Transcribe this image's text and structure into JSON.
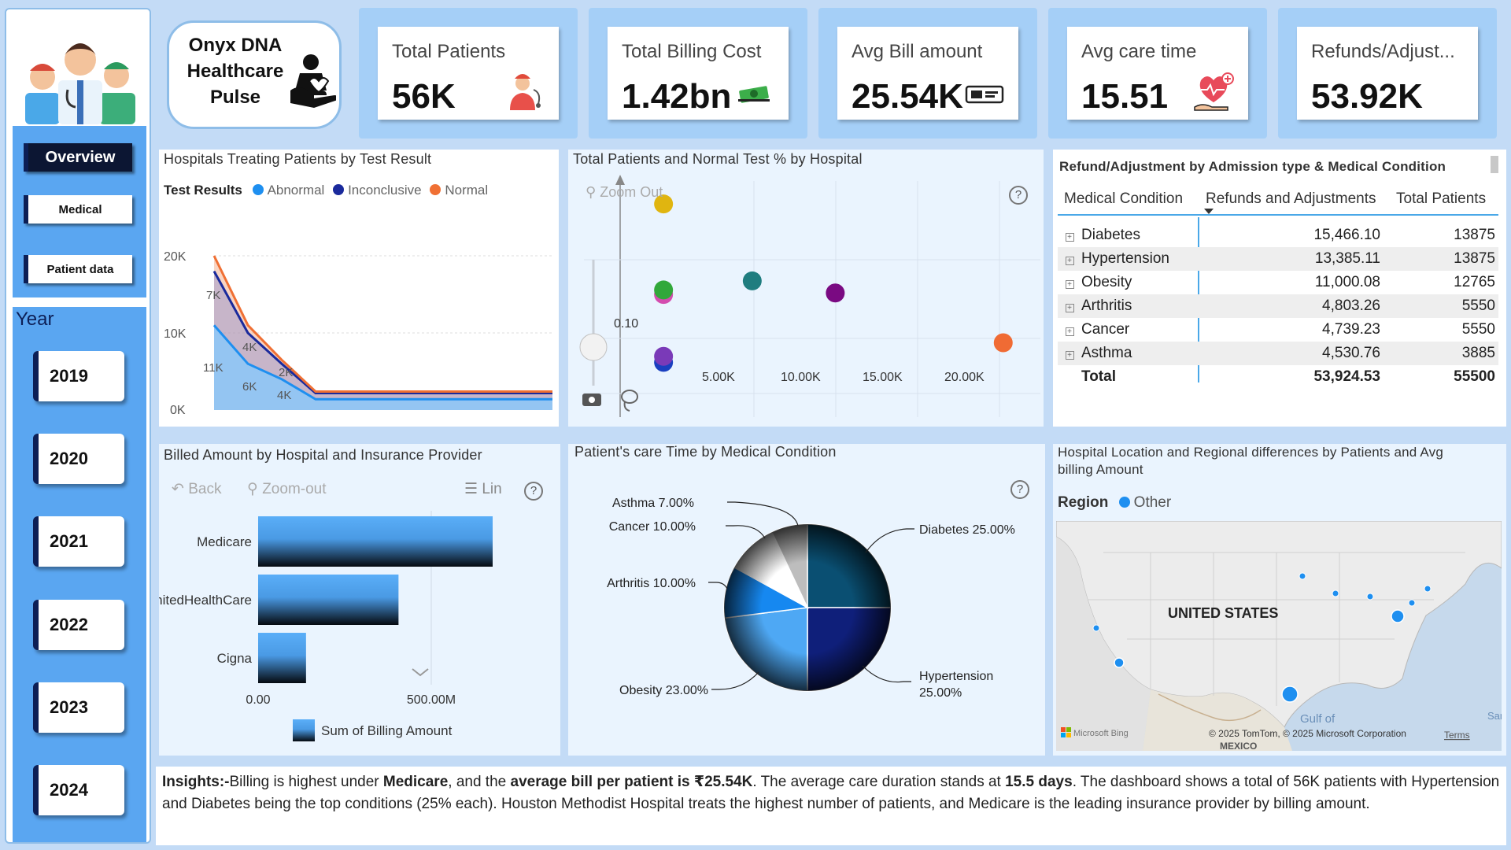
{
  "title": {
    "line1": "Onyx DNA",
    "line2": "Healthcare",
    "line3": "Pulse"
  },
  "nav": {
    "overview": "Overview",
    "medical": "Medical",
    "patient_data": "Patient data"
  },
  "year_filter": {
    "label": "Year",
    "years": [
      "2019",
      "2020",
      "2021",
      "2022",
      "2023",
      "2024"
    ]
  },
  "kpis": [
    {
      "label": "Total Patients",
      "value": "56K",
      "icon": "patient-icon"
    },
    {
      "label": "Total Billing Cost",
      "value": "1.42bn",
      "icon": "money-icon"
    },
    {
      "label": "Avg Bill amount",
      "value": "25.54K",
      "icon": "bill-icon"
    },
    {
      "label": "Avg care time",
      "value": "15.51",
      "icon": "heart-hand-icon"
    },
    {
      "label": "Refunds/Adjust...",
      "value": "53.92K",
      "icon": ""
    }
  ],
  "line_chart": {
    "title": "Hospitals Treating Patients by Test Result",
    "legend_title": "Test Results",
    "colors": {
      "Abnormal": "#1e8ff0",
      "Inconclusive": "#1a2a9c",
      "Normal": "#f07034"
    },
    "chart_data": {
      "type": "area",
      "title": "Hospitals Treating Patients by Test Result",
      "yticks": [
        "20K",
        "10K",
        "0K"
      ],
      "ylim": [
        0,
        20000
      ],
      "series": [
        {
          "name": "Abnormal",
          "values": [
            11000,
            6000,
            4000,
            1400,
            1400,
            1400,
            1400,
            1400,
            1400,
            1400,
            1400
          ]
        },
        {
          "name": "Inconclusive",
          "values": [
            18000,
            10000,
            6000,
            2200,
            2200,
            2200,
            2200,
            2200,
            2200,
            2200,
            2200
          ]
        },
        {
          "name": "Normal",
          "values": [
            20000,
            11000,
            6500,
            2400,
            2400,
            2400,
            2400,
            2400,
            2400,
            2400,
            2400
          ]
        }
      ],
      "data_labels": [
        "7K",
        "4K",
        "2K",
        "11K",
        "6K",
        "4K"
      ]
    }
  },
  "scatter_chart": {
    "title": "Total Patients and Normal Test % by Hospital",
    "zoom_out": "Zoom Out",
    "help": "?",
    "chart_data": {
      "type": "scatter",
      "title": "Total Patients and Normal Test % by Hospital",
      "xticks": [
        "5.00K",
        "10.00K",
        "15.00K",
        "20.00K"
      ],
      "ytick": "0.10",
      "points": [
        {
          "x": 2300,
          "y": 0.19,
          "color": "#e0b510"
        },
        {
          "x": 2300,
          "y": 0.13,
          "color": "#d44caf"
        },
        {
          "x": 2300,
          "y": 0.133,
          "color": "#31a83a"
        },
        {
          "x": 7000,
          "y": 0.139,
          "color": "#1f7d7f"
        },
        {
          "x": 11400,
          "y": 0.131,
          "color": "#7a0a82"
        },
        {
          "x": 2300,
          "y": 0.085,
          "color": "#1a3fc0"
        },
        {
          "x": 2300,
          "y": 0.089,
          "color": "#7a3ab8"
        },
        {
          "x": 20300,
          "y": 0.098,
          "color": "#f06b34"
        }
      ]
    }
  },
  "refund_table": {
    "title": "Refund/Adjustment by Admission type & Medical Condition",
    "columns": [
      "Medical Condition",
      "Refunds and Adjustments",
      "Total Patients"
    ],
    "rows": [
      {
        "condition": "Diabetes",
        "refunds": "15,466.10",
        "patients": "13875"
      },
      {
        "condition": "Hypertension",
        "refunds": "13,385.11",
        "patients": "13875"
      },
      {
        "condition": "Obesity",
        "refunds": "11,000.08",
        "patients": "12765"
      },
      {
        "condition": "Arthritis",
        "refunds": "4,803.26",
        "patients": "5550"
      },
      {
        "condition": "Cancer",
        "refunds": "4,739.23",
        "patients": "5550"
      },
      {
        "condition": "Asthma",
        "refunds": "4,530.76",
        "patients": "3885"
      }
    ],
    "total": {
      "label": "Total",
      "refunds": "53,924.53",
      "patients": "55500"
    }
  },
  "bar_chart": {
    "title": "Billed Amount by Hospital and Insurance Provider",
    "toolbar": {
      "back": "Back",
      "zoom_out": "Zoom-out",
      "lin": "Lin",
      "help": "?"
    },
    "legend": "Sum of Billing Amount",
    "chart_data": {
      "type": "bar",
      "orientation": "horizontal",
      "categories": [
        "Medicare",
        "UnitedHealthCare",
        "Cigna"
      ],
      "values": [
        710000000,
        425000000,
        145000000
      ],
      "xticks": [
        "0.00",
        "500.00M"
      ],
      "xlim": [
        0,
        710000000
      ]
    }
  },
  "pie_chart": {
    "title": "Patient's care Time by Medical Condition",
    "help": "?",
    "chart_data": {
      "type": "pie",
      "slices": [
        {
          "label": "Diabetes 25.00%",
          "value": 25,
          "color": "#0a4f72"
        },
        {
          "label": "Hypertension 25.00%",
          "value": 25,
          "color": "#0f1f7a"
        },
        {
          "label": "Obesity 23.00%",
          "value": 23,
          "color": "#4ea8f4"
        },
        {
          "label": "Arthritis 10.00%",
          "value": 10,
          "color": "#1688f0"
        },
        {
          "label": "Cancer 10.00%",
          "value": 10,
          "color": "#ffffff"
        },
        {
          "label": "Asthma 7.00%",
          "value": 7,
          "color": "#bdbdbd"
        }
      ]
    }
  },
  "map": {
    "title_line1": "Hospital Location and Regional differences by Patients and Avg",
    "title_line2": "billing Amount",
    "legend_label": "Region",
    "legend_item": "Other",
    "country": "UNITED STATES",
    "gulf": "Gulf of",
    "mexico": "MEXICO",
    "sa": "Sar",
    "credit": "© 2025 TomTom, © 2025 Microsoft Corporation",
    "terms": "Terms",
    "bing": "Microsoft Bing"
  },
  "insights": {
    "p1": "Insights:-",
    "p2": "Billing is highest under ",
    "p3": "Medicare",
    "p4": ", and the ",
    "p5": "average bill per patient is ₹25.54K",
    "p6": ". The average care duration stands at ",
    "p7": "15.5 days",
    "p8": ". The dashboard shows a total of 56K patients with Hypertension and Diabetes being the top conditions (25% each). Houston Methodist Hospital treats the highest number of patients, and Medicare is the leading insurance provider by billing amount."
  }
}
